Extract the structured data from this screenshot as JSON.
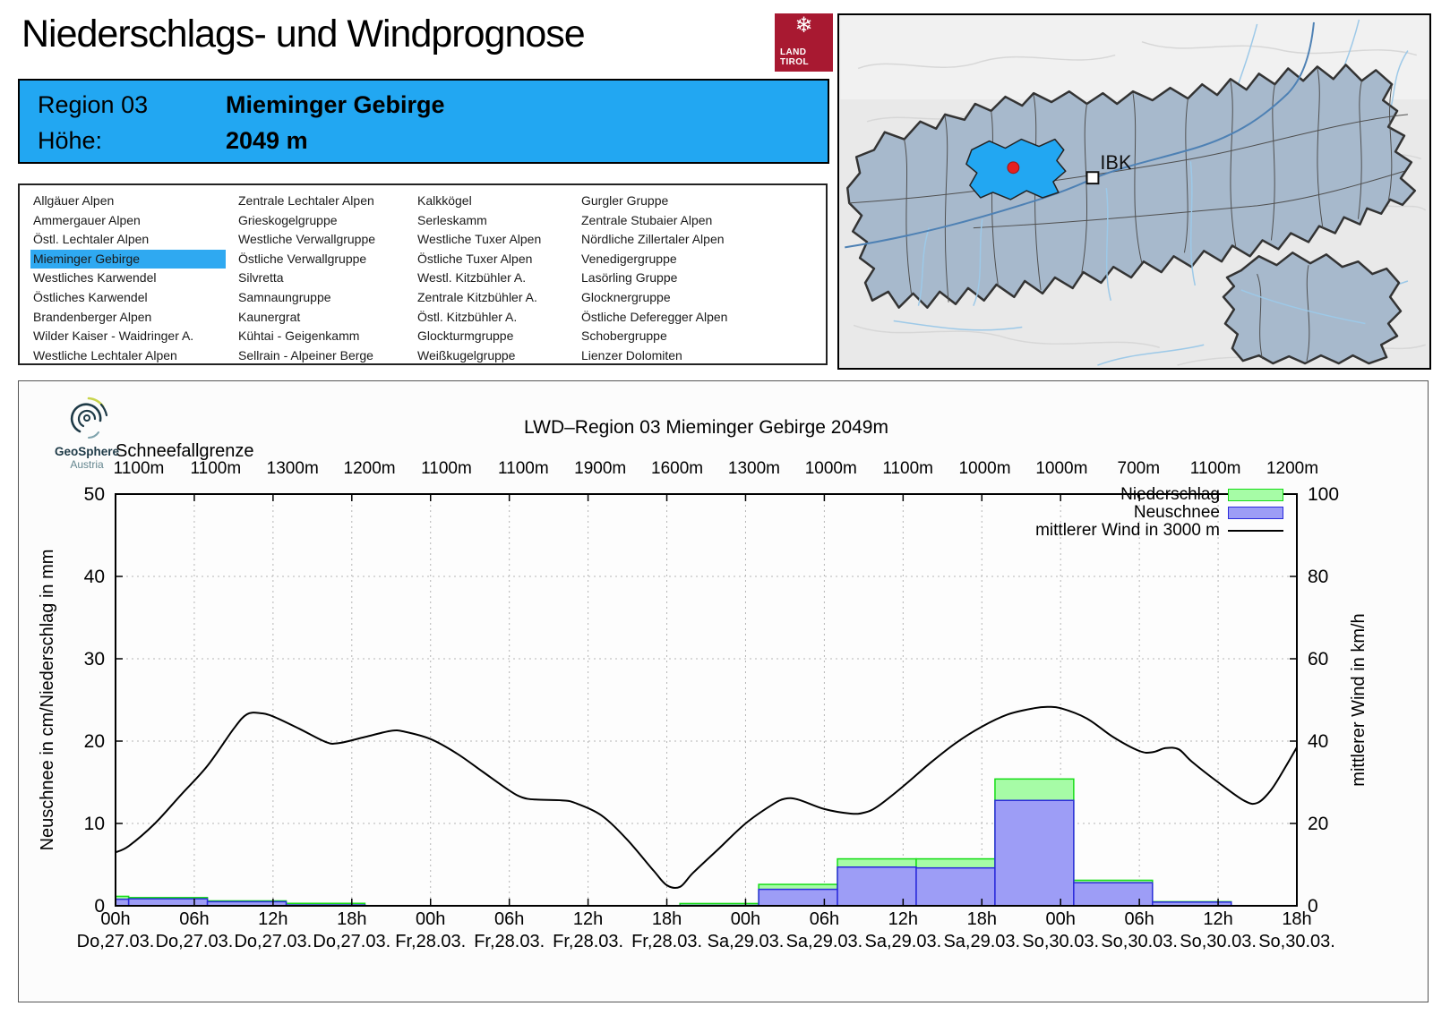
{
  "header": {
    "title": "Niederschlags- und Windprognose"
  },
  "land_tirol": {
    "line1": "LAND",
    "line2": "TIROL",
    "bg": "#A81931"
  },
  "region_box": {
    "region_label": "Region 03",
    "region_name": "Mieminger Gebirge",
    "hoehe_label": "Höhe:",
    "hoehe_value": "2049 m",
    "bg": "#22A7F2"
  },
  "region_list": {
    "selected": "Mieminger Gebirge",
    "selected_bg": "#2FA9F1",
    "columns": [
      [
        "Allgäuer Alpen",
        "Ammergauer Alpen",
        "Östl. Lechtaler Alpen",
        "Mieminger Gebirge",
        "Westliches Karwendel",
        "Östliches Karwendel",
        "Brandenberger Alpen",
        "Wilder Kaiser - Waidringer A.",
        "Westliche Lechtaler Alpen"
      ],
      [
        "Zentrale Lechtaler Alpen",
        "Grieskogelgruppe",
        "Westliche Verwallgruppe",
        "Östliche Verwallgruppe",
        "Silvretta",
        "Samnaungruppe",
        "Kaunergrat",
        "Kühtai - Geigenkamm",
        "Sellrain - Alpeiner Berge"
      ],
      [
        "Kalkkögel",
        "Serleskamm",
        "Westliche Tuxer Alpen",
        "Östliche Tuxer Alpen",
        "Westl. Kitzbühler A.",
        "Zentrale Kitzbühler A.",
        "Östl. Kitzbühler A.",
        "Glockturmgruppe",
        "Weißkugelgruppe"
      ],
      [
        "Gurgler Gruppe",
        "Zentrale Stubaier Alpen",
        "Nördliche Zillertaler Alpen",
        "Venedigergruppe",
        "Lasörling Gruppe",
        "Glocknergruppe",
        "Östliche Deferegger Alpen",
        "Schobergruppe",
        "Lienzer Dolomiten"
      ]
    ]
  },
  "map": {
    "ibk_label": "IBK",
    "colors": {
      "terrain": "#E9E9E9",
      "region_fill": "#A7B9CC",
      "region_border": "#333333",
      "selected_fill": "#22A7F2",
      "marker_red": "#E62020",
      "river_main": "#4E81B4",
      "river_light": "#9DC9E8"
    }
  },
  "geosphere": {
    "name": "GeoSphere",
    "sub": "Austria"
  },
  "chart_data": {
    "type": "bar+line",
    "title": "LWD–Region 03 Mieminger Gebirge 2049m",
    "snowline_label": "Schneefallgrenze",
    "snowline_values": [
      "1100m",
      "1100m",
      "1300m",
      "1200m",
      "1100m",
      "1100m",
      "1900m",
      "1600m",
      "1300m",
      "1000m",
      "1100m",
      "1000m",
      "1000m",
      "700m",
      "1100m",
      "1200m"
    ],
    "ylabel_left": "Neuschnee in cm/Niederschlag in mm",
    "ylabel_right": "mittlerer Wind in km/h",
    "ylim_left": [
      0,
      50
    ],
    "ylim_right": [
      0,
      100
    ],
    "left_ticks": [
      0,
      10,
      20,
      30,
      40,
      50
    ],
    "right_ticks": [
      0,
      20,
      40,
      60,
      80,
      100
    ],
    "hours_total": 90,
    "tick_step_hours": 6,
    "x_ticks": [
      {
        "hour": "00h",
        "date": "Do,27.03."
      },
      {
        "hour": "06h",
        "date": "Do,27.03."
      },
      {
        "hour": "12h",
        "date": "Do,27.03."
      },
      {
        "hour": "18h",
        "date": "Do,27.03."
      },
      {
        "hour": "00h",
        "date": "Fr,28.03."
      },
      {
        "hour": "06h",
        "date": "Fr,28.03."
      },
      {
        "hour": "12h",
        "date": "Fr,28.03."
      },
      {
        "hour": "18h",
        "date": "Fr,28.03."
      },
      {
        "hour": "00h",
        "date": "Sa,29.03."
      },
      {
        "hour": "06h",
        "date": "Sa,29.03."
      },
      {
        "hour": "12h",
        "date": "Sa,29.03."
      },
      {
        "hour": "18h",
        "date": "Sa,29.03."
      },
      {
        "hour": "00h",
        "date": "So,30.03."
      },
      {
        "hour": "06h",
        "date": "So,30.03."
      },
      {
        "hour": "12h",
        "date": "So,30.03."
      },
      {
        "hour": "18h",
        "date": "So,30.03."
      }
    ],
    "legend": [
      {
        "label": "Niederschlag",
        "type": "box",
        "fill": "#A6FCA6",
        "stroke": "#17DD17"
      },
      {
        "label": "Neuschnee",
        "type": "box",
        "fill": "#9D9DF6",
        "stroke": "#2B2BDB"
      },
      {
        "label": "mittlerer Wind in 3000 m",
        "type": "line",
        "stroke": "#000000"
      }
    ],
    "bars": [
      {
        "from_h": 0,
        "to_h": 1,
        "neuschnee_cm": 0.8,
        "niederschlag_mm": 1.15
      },
      {
        "from_h": 1,
        "to_h": 7,
        "neuschnee_cm": 0.85,
        "niederschlag_mm": 1.0
      },
      {
        "from_h": 7,
        "to_h": 13,
        "neuschnee_cm": 0.5,
        "niederschlag_mm": 0.6
      },
      {
        "from_h": 13,
        "to_h": 19,
        "neuschnee_cm": 0.1,
        "niederschlag_mm": 0.3
      },
      {
        "from_h": 43,
        "to_h": 49,
        "neuschnee_cm": 0.05,
        "niederschlag_mm": 0.28
      },
      {
        "from_h": 49,
        "to_h": 55,
        "neuschnee_cm": 2.0,
        "niederschlag_mm": 2.6
      },
      {
        "from_h": 55,
        "to_h": 61,
        "neuschnee_cm": 4.7,
        "niederschlag_mm": 5.7
      },
      {
        "from_h": 61,
        "to_h": 67,
        "neuschnee_cm": 4.6,
        "niederschlag_mm": 5.7
      },
      {
        "from_h": 67,
        "to_h": 73,
        "neuschnee_cm": 12.8,
        "niederschlag_mm": 15.4
      },
      {
        "from_h": 73,
        "to_h": 79,
        "neuschnee_cm": 2.8,
        "niederschlag_mm": 3.1
      },
      {
        "from_h": 79,
        "to_h": 85,
        "neuschnee_cm": 0.45,
        "niederschlag_mm": 0.5
      }
    ],
    "wind_kmh": [
      [
        0,
        13
      ],
      [
        1,
        14.5
      ],
      [
        3,
        20
      ],
      [
        5,
        27
      ],
      [
        7,
        34
      ],
      [
        9,
        43
      ],
      [
        10,
        46.5
      ],
      [
        11,
        46.8
      ],
      [
        12,
        46
      ],
      [
        14,
        43
      ],
      [
        16,
        39.8
      ],
      [
        17,
        39.5
      ],
      [
        19,
        41
      ],
      [
        21,
        42.5
      ],
      [
        22,
        42.3
      ],
      [
        24,
        40.5
      ],
      [
        26,
        37
      ],
      [
        28,
        32.5
      ],
      [
        30,
        28
      ],
      [
        31,
        26.3
      ],
      [
        32,
        25.8
      ],
      [
        34,
        25.6
      ],
      [
        35,
        25
      ],
      [
        37,
        22
      ],
      [
        39,
        16
      ],
      [
        41,
        8.5
      ],
      [
        42,
        5
      ],
      [
        43,
        4.6
      ],
      [
        44,
        8
      ],
      [
        46,
        14
      ],
      [
        48,
        20
      ],
      [
        50,
        24.5
      ],
      [
        51,
        26
      ],
      [
        52,
        25.8
      ],
      [
        54,
        23.5
      ],
      [
        56,
        22.4
      ],
      [
        57,
        22.6
      ],
      [
        58,
        24
      ],
      [
        60,
        29
      ],
      [
        62,
        34.5
      ],
      [
        64,
        39.5
      ],
      [
        66,
        43.5
      ],
      [
        68,
        46.5
      ],
      [
        70,
        48
      ],
      [
        71,
        48.3
      ],
      [
        72,
        48
      ],
      [
        74,
        45.5
      ],
      [
        76,
        41
      ],
      [
        78,
        37.6
      ],
      [
        79,
        37.3
      ],
      [
        80,
        38.3
      ],
      [
        81,
        38
      ],
      [
        82,
        35
      ],
      [
        84,
        30
      ],
      [
        86,
        25.5
      ],
      [
        87,
        25
      ],
      [
        88,
        28
      ],
      [
        89,
        33
      ],
      [
        90,
        38.5
      ]
    ],
    "colors": {
      "precip_fill": "#A6FCA6",
      "precip_stroke": "#17DD17",
      "snow_fill": "#9D9DF6",
      "snow_stroke": "#2B2BDB",
      "wind_line": "#000000",
      "grid": "#B5B5B5",
      "plot_bg": "#FDFDFD"
    }
  }
}
